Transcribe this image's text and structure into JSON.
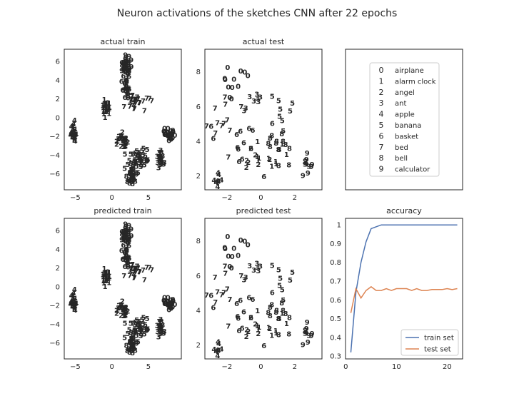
{
  "figure_title": "Neuron activations of the sketches CNN after 22 epochs",
  "colors": {
    "0": "#ff0000",
    "1": "#ff9900",
    "2": "#ccff00",
    "3": "#33ff00",
    "4": "#00ff66",
    "5": "#00ffff",
    "6": "#0066ff",
    "7": "#3300ff",
    "8": "#cc00ff",
    "9": "#ff0099",
    "train_line": "#4c72b0",
    "test_line": "#dd8452"
  },
  "chart_data": [
    {
      "type": "scatter",
      "title": "actual train",
      "xticks": [
        -5,
        0,
        5
      ],
      "yticks": [
        -6,
        -4,
        -2,
        0,
        2,
        4,
        6
      ],
      "xlim": [
        -6.5,
        9.5
      ],
      "ylim": [
        -7.7,
        7.3
      ],
      "clusters": [
        {
          "label": "0",
          "x": 7.8,
          "y": -1.8,
          "sx": 0.35,
          "sy": 0.35,
          "n": 30
        },
        {
          "label": "1",
          "x": -0.8,
          "y": 1.2,
          "sx": 0.35,
          "sy": 0.45,
          "n": 26
        },
        {
          "label": "2",
          "x": 1.5,
          "y": -2.5,
          "sx": 0.35,
          "sy": 0.5,
          "n": 28
        },
        {
          "label": "3",
          "x": 6.6,
          "y": -4.3,
          "sx": 0.25,
          "sy": 0.5,
          "n": 24
        },
        {
          "label": "4",
          "x": -5.3,
          "y": -1.6,
          "sx": 0.3,
          "sy": 0.5,
          "n": 24
        },
        {
          "label": "5",
          "x": 3.6,
          "y": -4.4,
          "sx": 0.9,
          "sy": 0.6,
          "n": 40
        },
        {
          "label": "6",
          "x": 1.9,
          "y": 4.0,
          "sx": 0.3,
          "sy": 0.9,
          "n": 34
        },
        {
          "label": "7",
          "x": 3.5,
          "y": 1.6,
          "sx": 0.8,
          "sy": 0.35,
          "n": 30
        },
        {
          "label": "8",
          "x": 2.8,
          "y": -6.2,
          "sx": 0.35,
          "sy": 0.6,
          "n": 28
        },
        {
          "label": "9",
          "x": 2.0,
          "y": 5.7,
          "sx": 0.3,
          "sy": 0.5,
          "n": 28
        }
      ]
    },
    {
      "type": "scatter",
      "title": "actual test",
      "xticks": [
        -2,
        0,
        2
      ],
      "yticks": [
        2,
        4,
        6,
        8
      ],
      "xlim": [
        -3.3,
        3.6
      ],
      "ylim": [
        1.2,
        9.3
      ],
      "clusters": [
        {
          "label": "0",
          "x": -1.6,
          "y": 7.4,
          "sx": 0.5,
          "sy": 0.6,
          "n": 12
        },
        {
          "label": "1",
          "x": 0.3,
          "y": 3.2,
          "sx": 0.6,
          "sy": 0.4,
          "n": 10
        },
        {
          "label": "2",
          "x": -0.4,
          "y": 2.8,
          "sx": 0.4,
          "sy": 0.3,
          "n": 7
        },
        {
          "label": "3",
          "x": -0.6,
          "y": 6.6,
          "sx": 0.5,
          "sy": 0.5,
          "n": 8
        },
        {
          "label": "4",
          "x": -2.4,
          "y": 1.8,
          "sx": 0.25,
          "sy": 0.4,
          "n": 9
        },
        {
          "label": "5",
          "x": 1.2,
          "y": 5.8,
          "sx": 0.3,
          "sy": 0.5,
          "n": 8
        },
        {
          "label": "6",
          "x": -1.0,
          "y": 4.2,
          "sx": 0.8,
          "sy": 0.9,
          "n": 14
        },
        {
          "label": "7",
          "x": -2.2,
          "y": 5.2,
          "sx": 0.6,
          "sy": 0.9,
          "n": 12
        },
        {
          "label": "8",
          "x": 0.8,
          "y": 3.8,
          "sx": 0.6,
          "sy": 0.6,
          "n": 14
        },
        {
          "label": "9",
          "x": 2.8,
          "y": 2.6,
          "sx": 0.3,
          "sy": 0.3,
          "n": 10
        }
      ]
    },
    {
      "type": "scatter",
      "title": "predicted train",
      "xticks": [
        -5,
        0,
        5
      ],
      "yticks": [
        -6,
        -4,
        -2,
        0,
        2,
        4,
        6
      ],
      "xlim": [
        -6.5,
        9.5
      ],
      "ylim": [
        -7.7,
        7.3
      ],
      "clusters": [
        {
          "label": "0",
          "x": 7.8,
          "y": -1.8,
          "sx": 0.35,
          "sy": 0.35,
          "n": 30
        },
        {
          "label": "1",
          "x": -0.8,
          "y": 1.2,
          "sx": 0.35,
          "sy": 0.45,
          "n": 26
        },
        {
          "label": "2",
          "x": 1.5,
          "y": -2.5,
          "sx": 0.35,
          "sy": 0.5,
          "n": 28
        },
        {
          "label": "3",
          "x": 6.6,
          "y": -4.3,
          "sx": 0.25,
          "sy": 0.5,
          "n": 24
        },
        {
          "label": "4",
          "x": -5.3,
          "y": -1.6,
          "sx": 0.3,
          "sy": 0.5,
          "n": 24
        },
        {
          "label": "5",
          "x": 3.6,
          "y": -4.4,
          "sx": 0.9,
          "sy": 0.6,
          "n": 40
        },
        {
          "label": "6",
          "x": 1.9,
          "y": 4.0,
          "sx": 0.3,
          "sy": 0.9,
          "n": 34
        },
        {
          "label": "7",
          "x": 3.5,
          "y": 1.6,
          "sx": 0.8,
          "sy": 0.35,
          "n": 30
        },
        {
          "label": "8",
          "x": 2.8,
          "y": -6.2,
          "sx": 0.35,
          "sy": 0.6,
          "n": 28
        },
        {
          "label": "9",
          "x": 2.0,
          "y": 5.7,
          "sx": 0.3,
          "sy": 0.5,
          "n": 28
        }
      ]
    },
    {
      "type": "scatter",
      "title": "predicted test",
      "xticks": [
        -2,
        0,
        2
      ],
      "yticks": [
        2,
        4,
        6,
        8
      ],
      "xlim": [
        -3.3,
        3.6
      ],
      "ylim": [
        1.2,
        9.3
      ],
      "clusters": [
        {
          "label": "0",
          "x": -1.6,
          "y": 7.4,
          "sx": 0.5,
          "sy": 0.6,
          "n": 12
        },
        {
          "label": "1",
          "x": 0.3,
          "y": 3.2,
          "sx": 0.6,
          "sy": 0.4,
          "n": 10
        },
        {
          "label": "2",
          "x": -0.4,
          "y": 2.8,
          "sx": 0.4,
          "sy": 0.3,
          "n": 7
        },
        {
          "label": "3",
          "x": -0.6,
          "y": 6.6,
          "sx": 0.5,
          "sy": 0.5,
          "n": 8
        },
        {
          "label": "4",
          "x": -2.4,
          "y": 1.8,
          "sx": 0.25,
          "sy": 0.4,
          "n": 9
        },
        {
          "label": "5",
          "x": 1.2,
          "y": 5.8,
          "sx": 0.3,
          "sy": 0.5,
          "n": 8
        },
        {
          "label": "6",
          "x": -1.0,
          "y": 4.2,
          "sx": 0.8,
          "sy": 0.9,
          "n": 14
        },
        {
          "label": "7",
          "x": -2.2,
          "y": 5.2,
          "sx": 0.6,
          "sy": 0.9,
          "n": 12
        },
        {
          "label": "8",
          "x": 0.8,
          "y": 3.8,
          "sx": 0.6,
          "sy": 0.6,
          "n": 14
        },
        {
          "label": "9",
          "x": 2.8,
          "y": 2.6,
          "sx": 0.3,
          "sy": 0.3,
          "n": 10
        }
      ]
    },
    {
      "type": "legend",
      "entries": [
        {
          "glyph": "0",
          "label": "airplane"
        },
        {
          "glyph": "1",
          "label": "alarm clock"
        },
        {
          "glyph": "2",
          "label": "angel"
        },
        {
          "glyph": "3",
          "label": "ant"
        },
        {
          "glyph": "4",
          "label": "apple"
        },
        {
          "glyph": "5",
          "label": "banana"
        },
        {
          "glyph": "6",
          "label": "basket"
        },
        {
          "glyph": "7",
          "label": "bed"
        },
        {
          "glyph": "8",
          "label": "bell"
        },
        {
          "glyph": "9",
          "label": "calculator"
        }
      ]
    },
    {
      "type": "line",
      "title": "accuracy",
      "xticks": [
        0,
        10,
        20
      ],
      "yticks": [
        0.3,
        0.4,
        0.5,
        0.6,
        0.7,
        0.8,
        0.9,
        1.0
      ],
      "xlim": [
        -0.05,
        23.05
      ],
      "ylim": [
        0.285,
        1.035
      ],
      "legend_position": "lower right",
      "x": [
        1,
        2,
        3,
        4,
        5,
        6,
        7,
        8,
        9,
        10,
        11,
        12,
        13,
        14,
        15,
        16,
        17,
        18,
        19,
        20,
        21,
        22
      ],
      "series": [
        {
          "name": "train set",
          "values": [
            0.32,
            0.64,
            0.8,
            0.91,
            0.98,
            0.99,
            1.0,
            1.0,
            1.0,
            1.0,
            1.0,
            1.0,
            1.0,
            1.0,
            1.0,
            1.0,
            1.0,
            1.0,
            1.0,
            1.0,
            1.0,
            1.0
          ]
        },
        {
          "name": "test set",
          "values": [
            0.53,
            0.66,
            0.61,
            0.65,
            0.67,
            0.65,
            0.65,
            0.66,
            0.65,
            0.66,
            0.66,
            0.66,
            0.65,
            0.66,
            0.65,
            0.65,
            0.655,
            0.655,
            0.655,
            0.66,
            0.655,
            0.66
          ]
        }
      ]
    }
  ]
}
